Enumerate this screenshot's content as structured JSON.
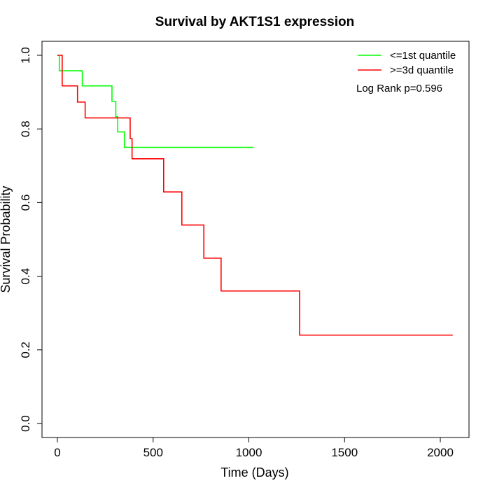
{
  "chart_data": {
    "type": "line",
    "title": "Survival by AKT1S1 expression",
    "xlabel": "Time (Days)",
    "ylabel": "Survival Probability",
    "xlim": [
      0,
      2070
    ],
    "ylim": [
      0,
      1
    ],
    "x_ticks": [
      0,
      500,
      1000,
      1500,
      2000
    ],
    "y_ticks": [
      0.0,
      0.2,
      0.4,
      0.6,
      0.8,
      1.0
    ],
    "x_tick_labels": [
      "0",
      "500",
      "1000",
      "1500",
      "2000"
    ],
    "y_tick_labels": [
      "0.0",
      "0.2",
      "0.4",
      "0.6",
      "0.8",
      "1.0"
    ],
    "grid": false,
    "legend_position": "top-right",
    "annotation": "Log Rank p=0.596",
    "series": [
      {
        "name": "<=1st quantile",
        "color": "#00ff00",
        "step_times": [
          0,
          10,
          130,
          285,
          305,
          315,
          350,
          1025
        ],
        "survival": [
          1.0,
          0.958,
          0.917,
          0.875,
          0.833,
          0.792,
          0.75,
          0.75
        ]
      },
      {
        "name": ">=3d quantile",
        "color": "#ff0000",
        "step_times": [
          0,
          25,
          105,
          145,
          380,
          390,
          555,
          650,
          765,
          855,
          1265,
          2065
        ],
        "survival": [
          1.0,
          0.917,
          0.873,
          0.83,
          0.774,
          0.719,
          0.629,
          0.539,
          0.449,
          0.36,
          0.24,
          0.24
        ]
      }
    ]
  }
}
